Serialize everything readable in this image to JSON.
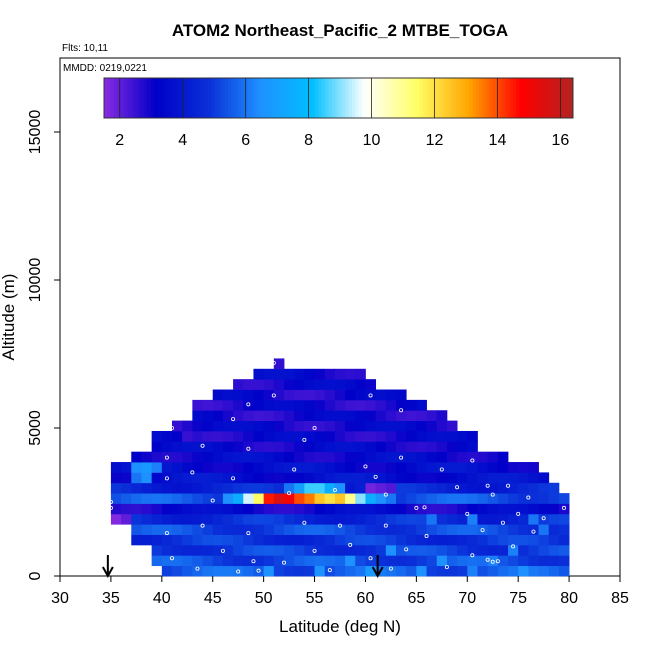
{
  "chart_data": {
    "type": "heatmap",
    "title": "ATOM2 Northeast_Pacific_2 MTBE_TOGA",
    "flights_label": "Flts: 10,11",
    "dates_label": "MMDD: 0219,0221",
    "xlabel": "Latitude (deg N)",
    "ylabel": "Altitude (m)",
    "xlim": [
      30,
      85
    ],
    "ylim": [
      0,
      17500
    ],
    "x_ticks": [
      "30",
      "35",
      "40",
      "45",
      "50",
      "55",
      "60",
      "65",
      "70",
      "75",
      "80",
      "85"
    ],
    "y_ticks": [
      "0",
      "5000",
      "10000",
      "15000"
    ],
    "colorbar": {
      "min": 1.5,
      "max": 16.4,
      "ticks": [
        "2",
        "4",
        "6",
        "8",
        "10",
        "12",
        "14",
        "16"
      ],
      "colors": [
        "#8a2be2",
        "#0000c8",
        "#0a2fd8",
        "#1e90ff",
        "#00bfff",
        "#ffffff",
        "#ffff66",
        "#ffa500",
        "#ff0000",
        "#b22222"
      ]
    },
    "grid_cell": {
      "dx": 1,
      "dy": 350
    },
    "rows": [
      {
        "y": 175,
        "x0": 40,
        "x1": 80,
        "v": 5.5
      },
      {
        "y": 525,
        "x0": 39,
        "x1": 80,
        "v": 5.3
      },
      {
        "y": 875,
        "x0": 39,
        "x1": 80,
        "v": 5.0
      },
      {
        "y": 1225,
        "x0": 37,
        "x1": 80,
        "v": 4.8
      },
      {
        "y": 1575,
        "x0": 37,
        "x1": 80,
        "v": 5.2
      },
      {
        "y": 1925,
        "x0": 35,
        "x1": 80,
        "v": 4.6
      },
      {
        "y": 2275,
        "x0": 35,
        "x1": 80,
        "v": 3.2
      },
      {
        "y": 2625,
        "x0": 35,
        "x1": 80,
        "v": 5.4
      },
      {
        "y": 2975,
        "x0": 35,
        "x1": 79,
        "v": 4.4
      },
      {
        "y": 3325,
        "x0": 35,
        "x1": 78,
        "v": 3.6
      },
      {
        "y": 3675,
        "x0": 35,
        "x1": 77,
        "v": 3.5
      },
      {
        "y": 4025,
        "x0": 37,
        "x1": 74,
        "v": 3.3
      },
      {
        "y": 4375,
        "x0": 39,
        "x1": 71,
        "v": 3.2
      },
      {
        "y": 4725,
        "x0": 39,
        "x1": 71,
        "v": 3.1
      },
      {
        "y": 5075,
        "x0": 41,
        "x1": 69,
        "v": 3.1
      },
      {
        "y": 5425,
        "x0": 43,
        "x1": 68,
        "v": 3.0
      },
      {
        "y": 5775,
        "x0": 43,
        "x1": 66,
        "v": 3.0
      },
      {
        "y": 6125,
        "x0": 45,
        "x1": 64,
        "v": 3.0
      },
      {
        "y": 6475,
        "x0": 47,
        "x1": 61,
        "v": 3.1
      },
      {
        "y": 6825,
        "x0": 49,
        "x1": 60,
        "v": 3.2
      },
      {
        "y": 7175,
        "x0": 51,
        "x1": 52,
        "v": 3.0
      }
    ],
    "patches": [
      {
        "x": 48,
        "y": 2625,
        "v": 9.5
      },
      {
        "x": 49,
        "y": 2625,
        "v": 11.5
      },
      {
        "x": 50,
        "y": 2625,
        "v": 14.5
      },
      {
        "x": 51,
        "y": 2625,
        "v": 15.5
      },
      {
        "x": 52,
        "y": 2625,
        "v": 15.0
      },
      {
        "x": 53,
        "y": 2625,
        "v": 14.0
      },
      {
        "x": 54,
        "y": 2625,
        "v": 13.5
      },
      {
        "x": 55,
        "y": 2625,
        "v": 12.5
      },
      {
        "x": 56,
        "y": 2625,
        "v": 12.0
      },
      {
        "x": 57,
        "y": 2625,
        "v": 12.5
      },
      {
        "x": 58,
        "y": 2625,
        "v": 11.0
      },
      {
        "x": 59,
        "y": 2625,
        "v": 9.0
      },
      {
        "x": 60,
        "y": 2625,
        "v": 7.5
      },
      {
        "x": 47,
        "y": 2625,
        "v": 7.5
      },
      {
        "x": 46,
        "y": 2625,
        "v": 6.5
      },
      {
        "x": 61,
        "y": 2625,
        "v": 6.5
      },
      {
        "x": 62,
        "y": 2625,
        "v": 6.0
      },
      {
        "x": 53,
        "y": 2975,
        "v": 7.0
      },
      {
        "x": 54,
        "y": 2975,
        "v": 8.5
      },
      {
        "x": 55,
        "y": 2975,
        "v": 8.5
      },
      {
        "x": 56,
        "y": 2975,
        "v": 7.5
      },
      {
        "x": 57,
        "y": 2975,
        "v": 6.5
      },
      {
        "x": 52,
        "y": 2975,
        "v": 6.0
      },
      {
        "x": 60,
        "y": 2975,
        "v": 1.8
      },
      {
        "x": 61,
        "y": 2975,
        "v": 2.0
      },
      {
        "x": 62,
        "y": 2975,
        "v": 2.2
      },
      {
        "x": 37,
        "y": 3675,
        "v": 6.5
      },
      {
        "x": 38,
        "y": 3675,
        "v": 6.8
      },
      {
        "x": 39,
        "y": 3675,
        "v": 6.2
      },
      {
        "x": 37,
        "y": 3325,
        "v": 6.0
      },
      {
        "x": 38,
        "y": 3325,
        "v": 6.5
      },
      {
        "x": 35,
        "y": 1925,
        "v": 1.6
      },
      {
        "x": 36,
        "y": 1925,
        "v": 2.0
      },
      {
        "x": 42,
        "y": 4725,
        "v": 2.5
      },
      {
        "x": 41,
        "y": 5075,
        "v": 2.5
      },
      {
        "x": 50,
        "y": 175,
        "v": 6.5
      },
      {
        "x": 55,
        "y": 175,
        "v": 6.5
      },
      {
        "x": 60,
        "y": 175,
        "v": 6.8
      },
      {
        "x": 65,
        "y": 175,
        "v": 6.5
      },
      {
        "x": 70,
        "y": 175,
        "v": 6.2
      },
      {
        "x": 75,
        "y": 175,
        "v": 6.5
      },
      {
        "x": 58,
        "y": 525,
        "v": 6.5
      },
      {
        "x": 67,
        "y": 525,
        "v": 6.5
      },
      {
        "x": 72,
        "y": 525,
        "v": 6.2
      },
      {
        "x": 62,
        "y": 875,
        "v": 6.5
      },
      {
        "x": 74,
        "y": 875,
        "v": 6.2
      },
      {
        "x": 77,
        "y": 1575,
        "v": 6.0
      },
      {
        "x": 66,
        "y": 1925,
        "v": 6.0
      },
      {
        "x": 70,
        "y": 1925,
        "v": 6.2
      },
      {
        "x": 76,
        "y": 1925,
        "v": 6.0
      }
    ],
    "samples": [
      [
        39.8,
        200
      ],
      [
        41.0,
        600
      ],
      [
        43.5,
        250
      ],
      [
        46.0,
        850
      ],
      [
        47.5,
        150
      ],
      [
        49.0,
        500
      ],
      [
        49.5,
        180
      ],
      [
        52.0,
        450
      ],
      [
        55.0,
        850
      ],
      [
        56.5,
        200
      ],
      [
        58.5,
        1050
      ],
      [
        60.5,
        600
      ],
      [
        62.5,
        250
      ],
      [
        64.0,
        900
      ],
      [
        66.0,
        1350
      ],
      [
        68.0,
        300
      ],
      [
        70.5,
        700
      ],
      [
        72.0,
        550
      ],
      [
        72.5,
        480
      ],
      [
        73.0,
        500
      ],
      [
        74.5,
        1000
      ],
      [
        76.5,
        1500
      ],
      [
        77.5,
        1950
      ],
      [
        79.5,
        2300
      ],
      [
        35.0,
        2300
      ],
      [
        35.0,
        2500
      ],
      [
        40.5,
        1450
      ],
      [
        44.0,
        1700
      ],
      [
        48.5,
        1450
      ],
      [
        54.0,
        1800
      ],
      [
        57.5,
        1700
      ],
      [
        62.0,
        1700
      ],
      [
        65.0,
        2300
      ],
      [
        65.8,
        2320
      ],
      [
        70.0,
        2100
      ],
      [
        71.5,
        1550
      ],
      [
        73.5,
        1800
      ],
      [
        75.0,
        2100
      ],
      [
        45.0,
        2550
      ],
      [
        52.5,
        2800
      ],
      [
        57.0,
        2900
      ],
      [
        62.0,
        2750
      ],
      [
        69.0,
        3000
      ],
      [
        72.5,
        2750
      ],
      [
        76.0,
        2650
      ],
      [
        40.5,
        3300
      ],
      [
        43.0,
        3500
      ],
      [
        47.0,
        3300
      ],
      [
        53.0,
        3600
      ],
      [
        61.0,
        3350
      ],
      [
        67.5,
        3600
      ],
      [
        72.0,
        3050
      ],
      [
        74.0,
        3050
      ],
      [
        40.5,
        4000
      ],
      [
        44.0,
        4400
      ],
      [
        48.5,
        4300
      ],
      [
        54.0,
        4600
      ],
      [
        60.0,
        3700
      ],
      [
        63.5,
        4000
      ],
      [
        70.5,
        3900
      ],
      [
        41.0,
        5000
      ],
      [
        47.0,
        5300
      ],
      [
        55.0,
        5000
      ],
      [
        63.5,
        5600
      ],
      [
        48.5,
        5800
      ],
      [
        51.0,
        6100
      ],
      [
        60.5,
        6100
      ],
      [
        60.5,
        6950
      ],
      [
        51.0,
        7200
      ]
    ],
    "arrows": [
      {
        "x": 34.7
      },
      {
        "x": 61.2
      }
    ]
  }
}
